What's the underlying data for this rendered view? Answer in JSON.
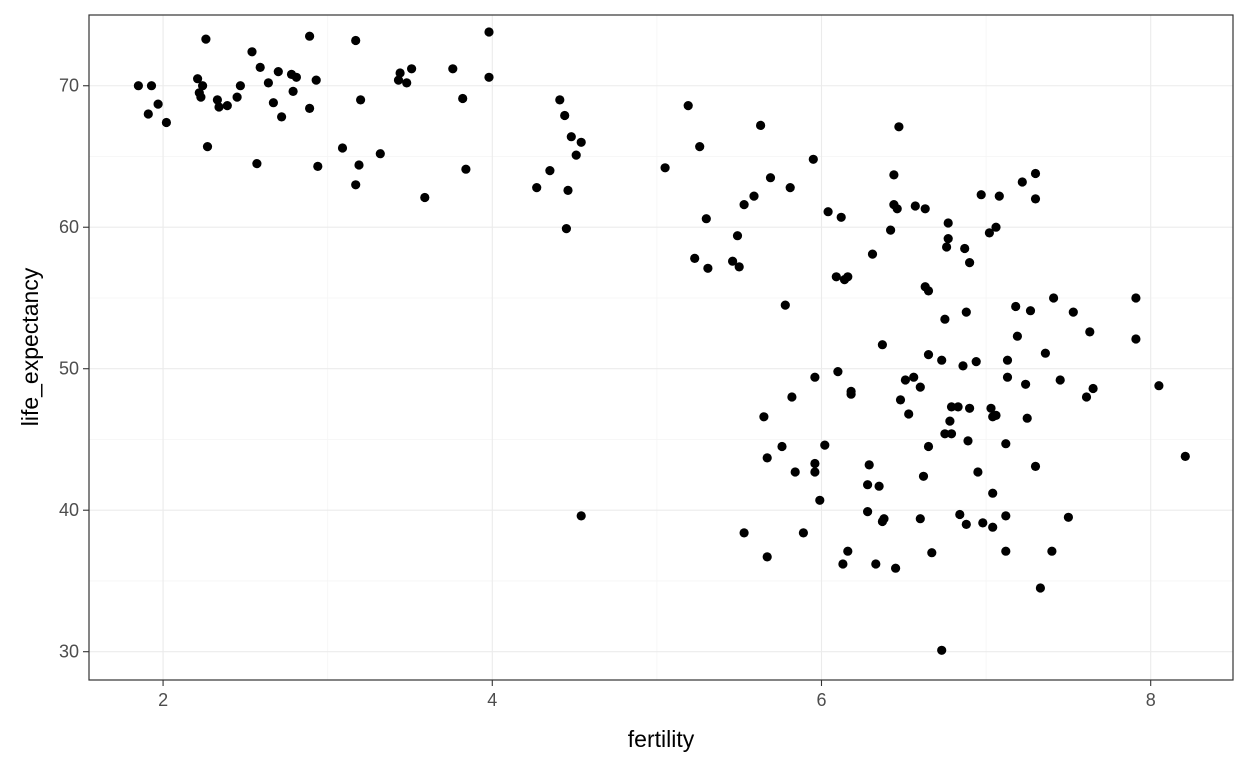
{
  "chart_data": {
    "type": "scatter",
    "title": "",
    "xlabel": "fertility",
    "ylabel": "life_expectancy",
    "xlim": [
      1.55,
      8.5
    ],
    "ylim": [
      28,
      75
    ],
    "x_ticks": [
      2,
      4,
      6,
      8
    ],
    "y_ticks": [
      30,
      40,
      50,
      60,
      70
    ],
    "x_tick_labels": [
      "2",
      "4",
      "6",
      "8"
    ],
    "y_tick_labels": [
      "30",
      "40",
      "50",
      "60",
      "70"
    ],
    "grid": true,
    "legend": "none",
    "point_color": "#000000",
    "points": [
      [
        1.85,
        70.0
      ],
      [
        1.93,
        70.0
      ],
      [
        1.97,
        68.7
      ],
      [
        1.91,
        68.0
      ],
      [
        2.02,
        67.4
      ],
      [
        2.21,
        70.5
      ],
      [
        2.22,
        69.5
      ],
      [
        2.23,
        69.2
      ],
      [
        2.24,
        70.0
      ],
      [
        2.26,
        73.3
      ],
      [
        2.27,
        65.7
      ],
      [
        2.33,
        69.0
      ],
      [
        2.34,
        68.5
      ],
      [
        2.39,
        68.6
      ],
      [
        2.45,
        69.2
      ],
      [
        2.47,
        70.0
      ],
      [
        2.54,
        72.4
      ],
      [
        2.57,
        64.5
      ],
      [
        2.59,
        71.3
      ],
      [
        2.64,
        70.2
      ],
      [
        2.67,
        68.8
      ],
      [
        2.7,
        71.0
      ],
      [
        2.72,
        67.8
      ],
      [
        2.78,
        70.8
      ],
      [
        2.79,
        69.6
      ],
      [
        2.81,
        70.6
      ],
      [
        2.89,
        73.5
      ],
      [
        2.89,
        68.4
      ],
      [
        2.93,
        70.4
      ],
      [
        2.94,
        64.3
      ],
      [
        3.09,
        65.6
      ],
      [
        3.17,
        73.2
      ],
      [
        3.17,
        63.0
      ],
      [
        3.19,
        64.4
      ],
      [
        3.2,
        69.0
      ],
      [
        3.32,
        65.2
      ],
      [
        3.43,
        70.4
      ],
      [
        3.44,
        70.9
      ],
      [
        3.48,
        70.2
      ],
      [
        3.51,
        71.2
      ],
      [
        3.59,
        62.1
      ],
      [
        3.76,
        71.2
      ],
      [
        3.82,
        69.1
      ],
      [
        3.84,
        64.1
      ],
      [
        3.98,
        73.8
      ],
      [
        3.98,
        70.6
      ],
      [
        4.27,
        62.8
      ],
      [
        4.35,
        64.0
      ],
      [
        4.41,
        69.0
      ],
      [
        4.44,
        67.9
      ],
      [
        4.45,
        59.9
      ],
      [
        4.46,
        62.6
      ],
      [
        4.48,
        66.4
      ],
      [
        4.51,
        65.1
      ],
      [
        4.54,
        66.0
      ],
      [
        4.54,
        39.6
      ],
      [
        5.05,
        64.2
      ],
      [
        5.19,
        68.6
      ],
      [
        5.23,
        57.8
      ],
      [
        5.26,
        65.7
      ],
      [
        5.3,
        60.6
      ],
      [
        5.31,
        57.1
      ],
      [
        5.46,
        57.6
      ],
      [
        5.49,
        59.4
      ],
      [
        5.5,
        57.2
      ],
      [
        5.53,
        38.4
      ],
      [
        5.53,
        61.6
      ],
      [
        5.59,
        62.2
      ],
      [
        5.63,
        67.2
      ],
      [
        5.65,
        46.6
      ],
      [
        5.67,
        43.7
      ],
      [
        5.67,
        36.7
      ],
      [
        5.69,
        63.5
      ],
      [
        5.76,
        44.5
      ],
      [
        5.78,
        54.5
      ],
      [
        5.81,
        62.8
      ],
      [
        5.82,
        48.0
      ],
      [
        5.84,
        42.7
      ],
      [
        5.89,
        38.4
      ],
      [
        5.95,
        64.8
      ],
      [
        5.96,
        49.4
      ],
      [
        5.96,
        43.3
      ],
      [
        5.96,
        42.7
      ],
      [
        5.99,
        40.7
      ],
      [
        6.02,
        44.6
      ],
      [
        6.04,
        61.1
      ],
      [
        6.09,
        56.5
      ],
      [
        6.1,
        49.8
      ],
      [
        6.12,
        60.7
      ],
      [
        6.13,
        36.2
      ],
      [
        6.14,
        56.3
      ],
      [
        6.16,
        56.5
      ],
      [
        6.16,
        37.1
      ],
      [
        6.18,
        48.4
      ],
      [
        6.18,
        48.2
      ],
      [
        6.28,
        39.9
      ],
      [
        6.28,
        41.8
      ],
      [
        6.29,
        43.2
      ],
      [
        6.31,
        58.1
      ],
      [
        6.33,
        36.2
      ],
      [
        6.35,
        41.7
      ],
      [
        6.37,
        51.7
      ],
      [
        6.37,
        39.2
      ],
      [
        6.38,
        39.4
      ],
      [
        6.42,
        59.8
      ],
      [
        6.44,
        61.6
      ],
      [
        6.44,
        63.7
      ],
      [
        6.45,
        35.9
      ],
      [
        6.46,
        61.3
      ],
      [
        6.47,
        67.1
      ],
      [
        6.48,
        47.8
      ],
      [
        6.51,
        49.2
      ],
      [
        6.53,
        46.8
      ],
      [
        6.56,
        49.4
      ],
      [
        6.57,
        61.5
      ],
      [
        6.6,
        39.4
      ],
      [
        6.6,
        48.7
      ],
      [
        6.62,
        42.4
      ],
      [
        6.63,
        61.3
      ],
      [
        6.63,
        55.8
      ],
      [
        6.65,
        55.5
      ],
      [
        6.65,
        51.0
      ],
      [
        6.65,
        44.5
      ],
      [
        6.67,
        37.0
      ],
      [
        6.73,
        30.1
      ],
      [
        6.73,
        50.6
      ],
      [
        6.75,
        53.5
      ],
      [
        6.75,
        45.4
      ],
      [
        6.76,
        58.6
      ],
      [
        6.77,
        60.3
      ],
      [
        6.77,
        59.2
      ],
      [
        6.78,
        46.3
      ],
      [
        6.79,
        45.4
      ],
      [
        6.79,
        47.3
      ],
      [
        6.83,
        47.3
      ],
      [
        6.84,
        39.7
      ],
      [
        6.86,
        50.2
      ],
      [
        6.87,
        58.5
      ],
      [
        6.88,
        39.0
      ],
      [
        6.88,
        54.0
      ],
      [
        6.89,
        44.9
      ],
      [
        6.9,
        57.5
      ],
      [
        6.9,
        47.2
      ],
      [
        6.94,
        50.5
      ],
      [
        6.95,
        42.7
      ],
      [
        6.97,
        62.3
      ],
      [
        6.98,
        39.1
      ],
      [
        7.02,
        59.6
      ],
      [
        7.03,
        47.2
      ],
      [
        7.04,
        46.6
      ],
      [
        7.04,
        41.2
      ],
      [
        7.04,
        38.8
      ],
      [
        7.06,
        60.0
      ],
      [
        7.06,
        46.7
      ],
      [
        7.08,
        62.2
      ],
      [
        7.12,
        44.7
      ],
      [
        7.12,
        37.1
      ],
      [
        7.12,
        39.6
      ],
      [
        7.13,
        49.4
      ],
      [
        7.13,
        50.6
      ],
      [
        7.18,
        54.4
      ],
      [
        7.19,
        52.3
      ],
      [
        7.22,
        63.2
      ],
      [
        7.24,
        48.9
      ],
      [
        7.25,
        46.5
      ],
      [
        7.27,
        54.1
      ],
      [
        7.3,
        62.0
      ],
      [
        7.3,
        63.8
      ],
      [
        7.3,
        43.1
      ],
      [
        7.33,
        34.5
      ],
      [
        7.36,
        51.1
      ],
      [
        7.4,
        37.1
      ],
      [
        7.41,
        55.0
      ],
      [
        7.45,
        49.2
      ],
      [
        7.5,
        39.5
      ],
      [
        7.53,
        54.0
      ],
      [
        7.61,
        48.0
      ],
      [
        7.63,
        52.6
      ],
      [
        7.65,
        48.6
      ],
      [
        7.91,
        55.0
      ],
      [
        7.91,
        52.1
      ],
      [
        8.05,
        48.8
      ],
      [
        8.21,
        43.8
      ]
    ]
  }
}
